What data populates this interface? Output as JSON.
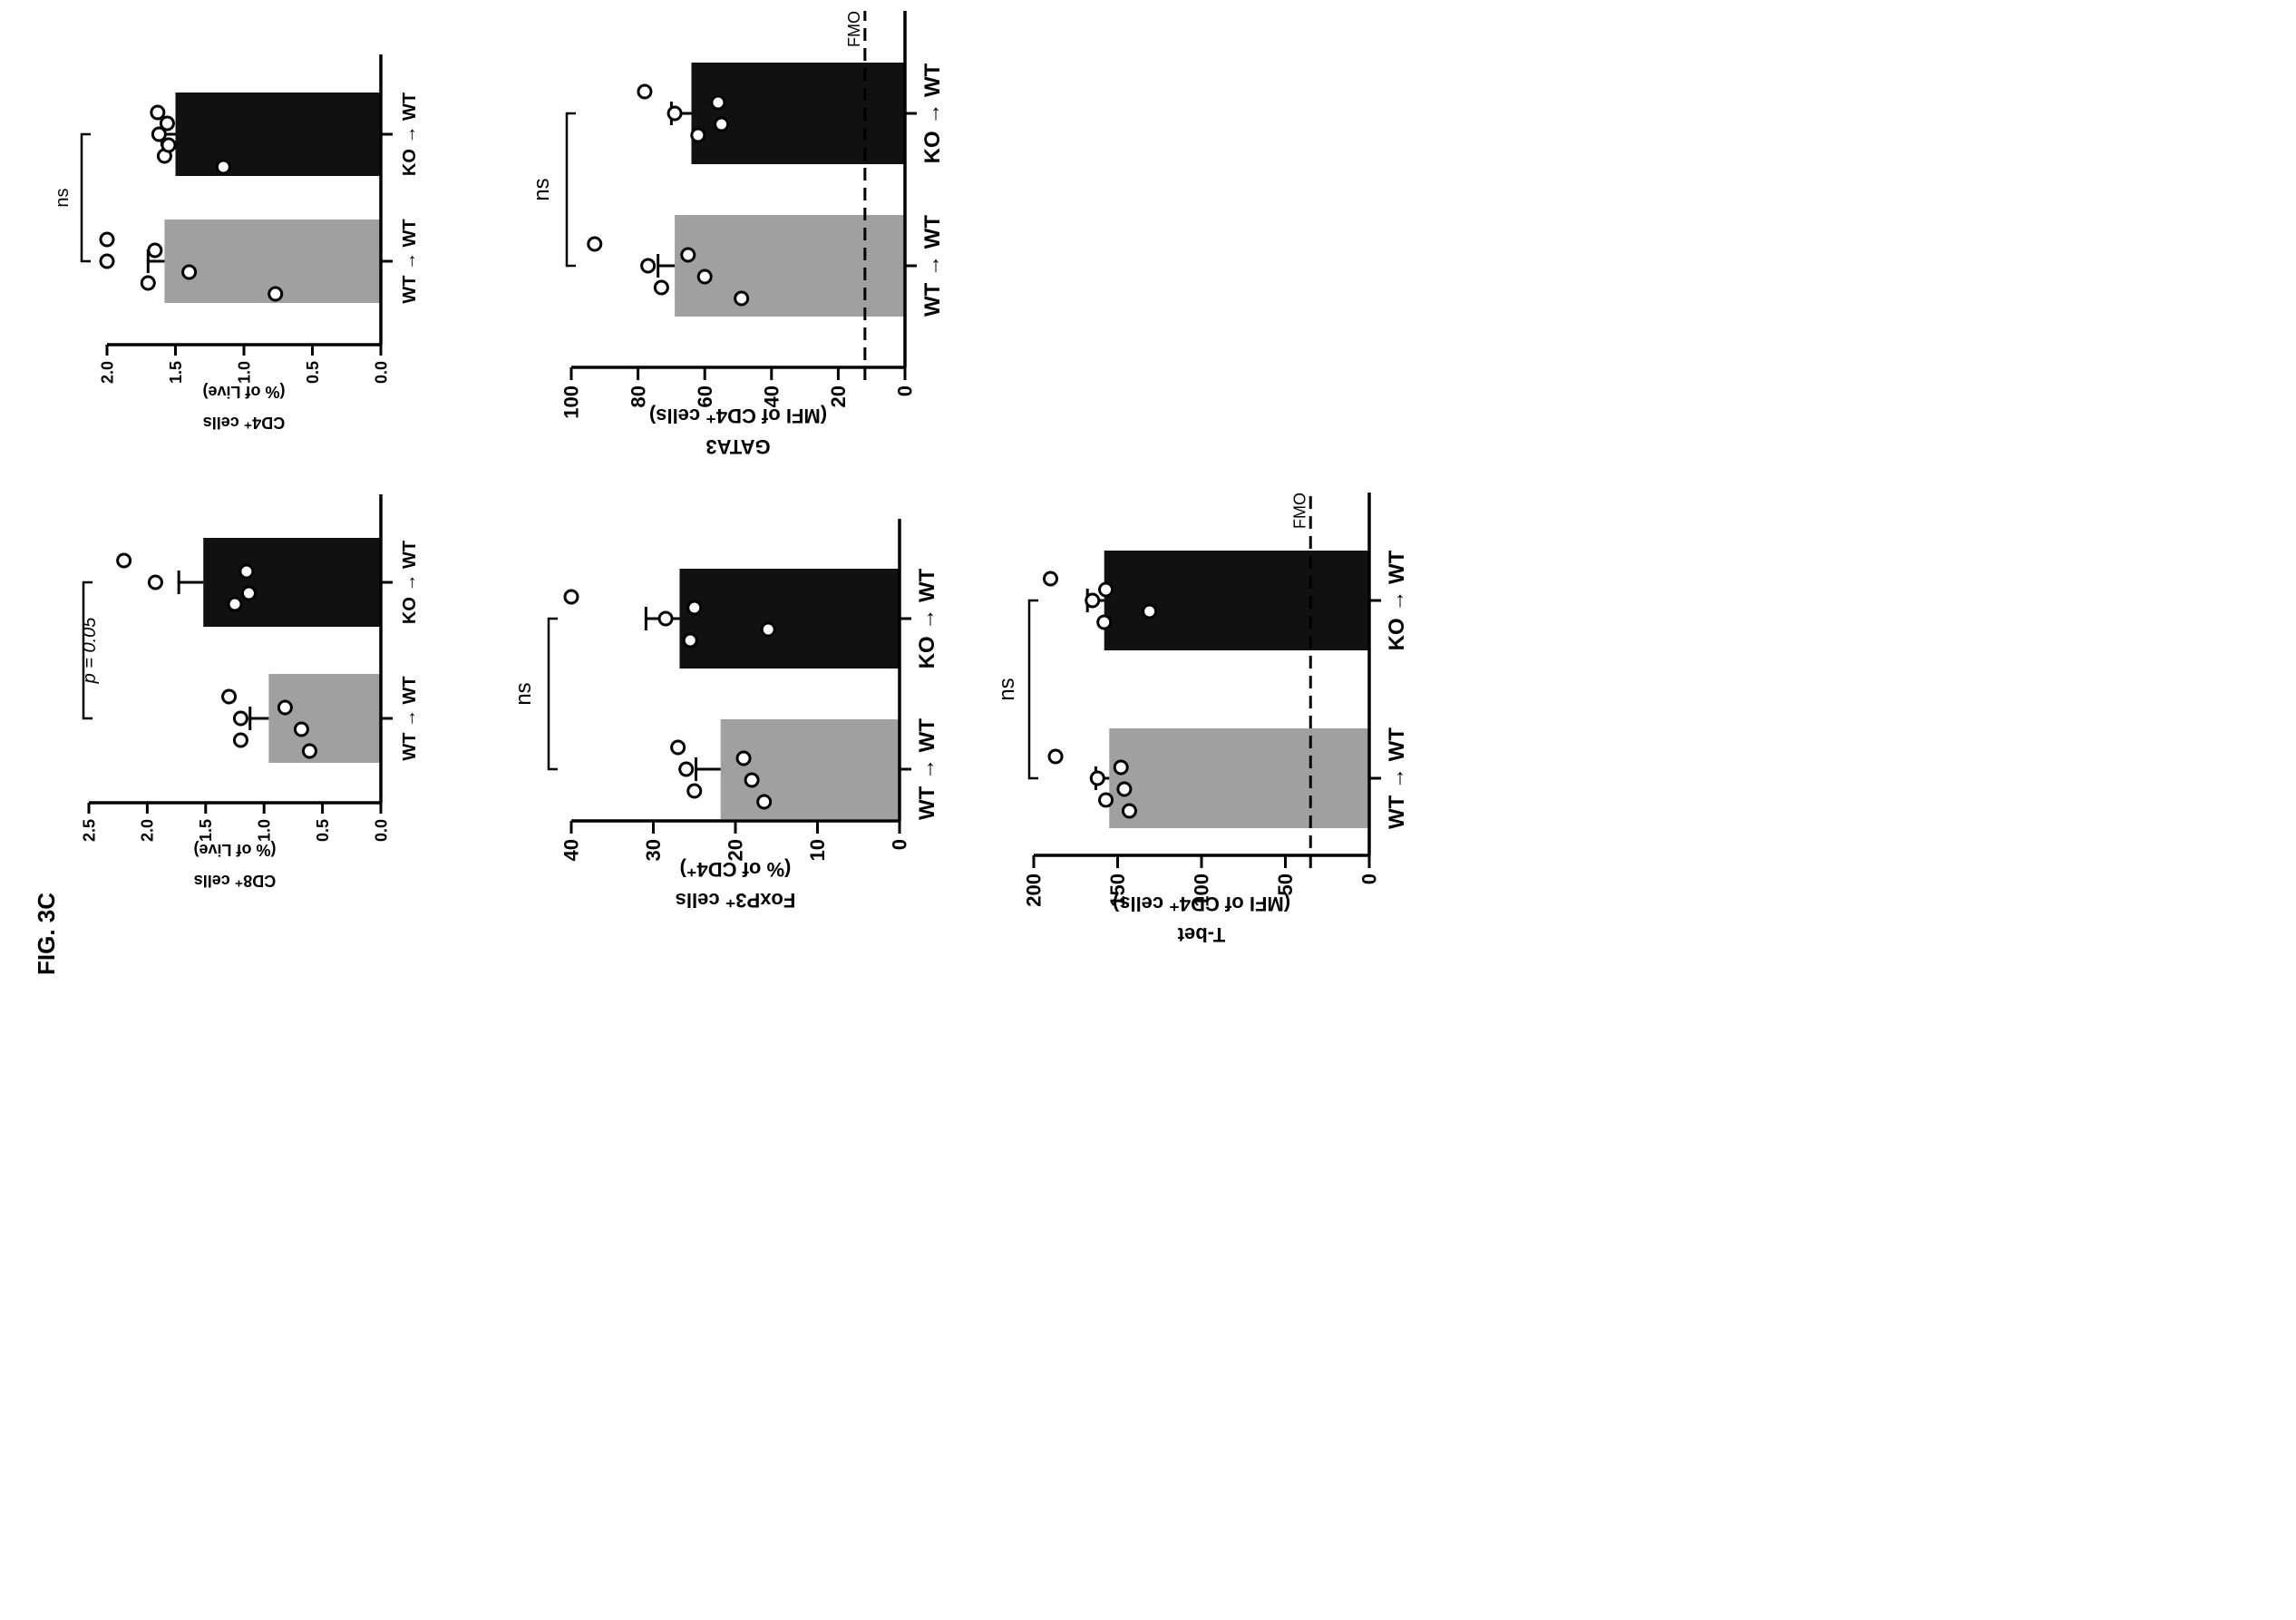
{
  "figure_label": "FIG. 3C",
  "colors": {
    "wt_bar": "#a0a0a0",
    "ko_bar": "#111111",
    "axis": "#000000"
  },
  "chart_data": [
    {
      "id": "cd8",
      "type": "bar",
      "categories": [
        "WT → WT",
        "KO → WT"
      ],
      "values": [
        0.96,
        1.52
      ],
      "sem": [
        0.16,
        0.21
      ],
      "points": [
        [
          1.3,
          1.2,
          1.2,
          0.82,
          0.68,
          0.61
        ],
        [
          2.2,
          1.93,
          1.25,
          1.15,
          1.13
        ]
      ],
      "ylabel_line1": "CD8⁺ cells",
      "ylabel_line2": "(% of Live)",
      "ylim": [
        0,
        2.5
      ],
      "ticks": [
        0,
        0.5,
        1.0,
        1.5,
        2.0,
        2.5
      ],
      "tick_labels": [
        "0.0",
        "0.5",
        "1.0",
        "1.5",
        "2.0",
        "2.5"
      ],
      "significance": "p = 0.05",
      "reference_line": null
    },
    {
      "id": "cd4",
      "type": "bar",
      "categories": [
        "WT → WT",
        "KO → WT"
      ],
      "values": [
        1.58,
        1.5
      ],
      "sem": [
        0.12,
        0.1
      ],
      "points": [
        [
          2.0,
          2.0,
          1.7,
          1.65,
          1.4,
          0.77
        ],
        [
          1.63,
          1.62,
          1.58,
          1.56,
          1.55,
          1.15
        ]
      ],
      "ylabel_line1": "CD4⁺ cells",
      "ylabel_line2": "(% of Live)",
      "ylim": [
        0,
        2.0
      ],
      "ticks": [
        0,
        0.5,
        1.0,
        1.5,
        2.0
      ],
      "tick_labels": [
        "0.0",
        "0.5",
        "1.0",
        "1.5",
        "2.0"
      ],
      "significance": "ns",
      "reference_line": null
    },
    {
      "id": "foxp3",
      "type": "bar",
      "categories": [
        "WT → WT",
        "KO → WT"
      ],
      "values": [
        21.8,
        26.8
      ],
      "sem": [
        3.0,
        4.1
      ],
      "points": [
        [
          27,
          26,
          25,
          19,
          18,
          16.5
        ],
        [
          40,
          28.5,
          25.5,
          25,
          16
        ]
      ],
      "ylabel_line1": "FoxP3⁺ cells",
      "ylabel_line2": "(% of CD4⁺)",
      "ylim": [
        0,
        40
      ],
      "ticks": [
        0,
        10,
        20,
        30,
        40
      ],
      "tick_labels": [
        "0",
        "10",
        "20",
        "30",
        "40"
      ],
      "significance": "ns",
      "reference_line": null
    },
    {
      "id": "gata3",
      "type": "bar",
      "categories": [
        "WT → WT",
        "KO → WT"
      ],
      "values": [
        69,
        64
      ],
      "sem": [
        5,
        6
      ],
      "points": [
        [
          93,
          77,
          73,
          65,
          60,
          49
        ],
        [
          78,
          69,
          62,
          56,
          55
        ]
      ],
      "ylabel_line1": "GATA3",
      "ylabel_line2": "(MFI of CD4⁺ cells)",
      "ylim": [
        0,
        100
      ],
      "ticks": [
        0,
        20,
        40,
        60,
        80,
        100
      ],
      "tick_labels": [
        "0",
        "20",
        "40",
        "60",
        "80",
        "100"
      ],
      "significance": "ns",
      "reference_line": {
        "value": 12,
        "label": "FMO"
      }
    },
    {
      "id": "tbet",
      "type": "bar",
      "categories": [
        "WT → WT",
        "KO → WT"
      ],
      "values": [
        155,
        158
      ],
      "sem": [
        8,
        10
      ],
      "points": [
        [
          187,
          162,
          157,
          148,
          146,
          143
        ],
        [
          190,
          165,
          158,
          157,
          131
        ]
      ],
      "ylabel_line1": "T-bet",
      "ylabel_line2": "(MFI of CD4⁺ cells)",
      "ylim": [
        0,
        200
      ],
      "ticks": [
        0,
        50,
        100,
        150,
        200
      ],
      "tick_labels": [
        "0",
        "50",
        "100",
        "150",
        "200"
      ],
      "significance": "ns",
      "reference_line": {
        "value": 35,
        "label": "FMO"
      }
    }
  ]
}
